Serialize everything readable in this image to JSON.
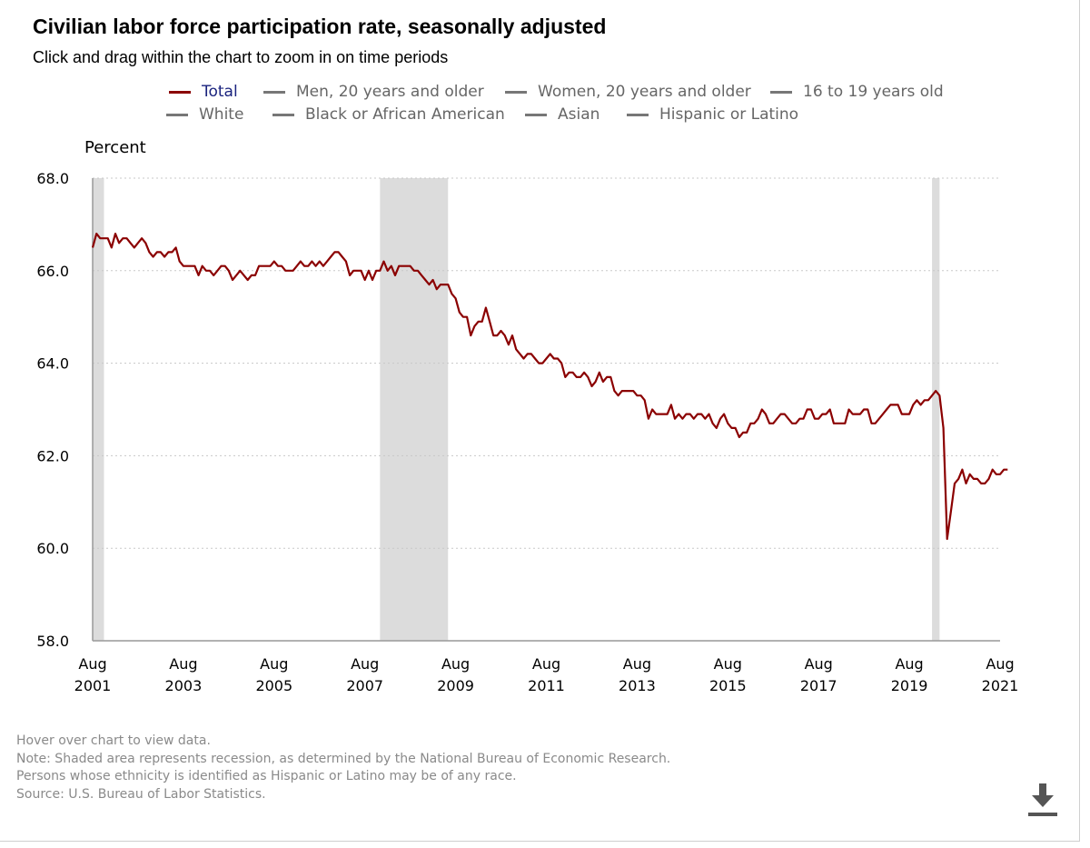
{
  "title": "Civilian labor force participation rate, seasonally adjusted",
  "subtitle": "Click and drag within the chart to zoom in on time periods",
  "legend": [
    {
      "label": "Total",
      "color": "#8b0000",
      "active": true
    },
    {
      "label": "Men, 20 years and older",
      "color": "#777777",
      "active": false
    },
    {
      "label": "Women, 20 years and older",
      "color": "#777777",
      "active": false
    },
    {
      "label": "16 to 19 years old",
      "color": "#777777",
      "active": false
    },
    {
      "label": "White",
      "color": "#777777",
      "active": false
    },
    {
      "label": "Black or African American",
      "color": "#777777",
      "active": false
    },
    {
      "label": "Asian",
      "color": "#777777",
      "active": false
    },
    {
      "label": "Hispanic or Latino",
      "color": "#777777",
      "active": false
    }
  ],
  "y_unit_label": "Percent",
  "footer": {
    "hover": "Hover over chart to view data.",
    "note": "Note: Shaded area represents recession, as determined by the National Bureau of Economic Research.",
    "ethnicity": "Persons whose ethnicity is identified as Hispanic or Latino may be of any race.",
    "source": "Source: U.S. Bureau of Labor Statistics."
  },
  "download_icon": "download-icon",
  "colors": {
    "series": "#8b0000",
    "recession": "#dcdcdc",
    "grid": "#c8c8c8",
    "axis": "#999999"
  },
  "chart_data": {
    "type": "line",
    "title": "Civilian labor force participation rate, seasonally adjusted",
    "ylabel": "Percent",
    "xlabel": "",
    "ylim": [
      58.0,
      68.0
    ],
    "yticks": [
      58.0,
      60.0,
      62.0,
      64.0,
      66.0,
      68.0
    ],
    "ytick_labels": [
      "58.0",
      "60.0",
      "62.0",
      "64.0",
      "66.0",
      "68.0"
    ],
    "xlim_months": [
      0,
      240
    ],
    "xticks": [
      {
        "m": 0,
        "month": "Aug",
        "year": "2001"
      },
      {
        "m": 24,
        "month": "Aug",
        "year": "2003"
      },
      {
        "m": 48,
        "month": "Aug",
        "year": "2005"
      },
      {
        "m": 72,
        "month": "Aug",
        "year": "2007"
      },
      {
        "m": 96,
        "month": "Aug",
        "year": "2009"
      },
      {
        "m": 120,
        "month": "Aug",
        "year": "2011"
      },
      {
        "m": 144,
        "month": "Aug",
        "year": "2013"
      },
      {
        "m": 168,
        "month": "Aug",
        "year": "2015"
      },
      {
        "m": 192,
        "month": "Aug",
        "year": "2017"
      },
      {
        "m": 216,
        "month": "Aug",
        "year": "2019"
      },
      {
        "m": 240,
        "month": "Aug",
        "year": "2021"
      }
    ],
    "recessions": [
      {
        "label": "2001 recession",
        "start_m": 0,
        "end_m": 3
      },
      {
        "label": "2007-2009 recession",
        "start_m": 76,
        "end_m": 94
      },
      {
        "label": "2020 recession",
        "start_m": 222,
        "end_m": 224
      }
    ],
    "grid": true,
    "series": [
      {
        "name": "Total",
        "start": "Aug 2001",
        "frequency": "monthly",
        "values": [
          66.5,
          66.8,
          66.7,
          66.7,
          66.7,
          66.5,
          66.8,
          66.6,
          66.7,
          66.7,
          66.6,
          66.5,
          66.6,
          66.7,
          66.6,
          66.4,
          66.3,
          66.4,
          66.4,
          66.3,
          66.4,
          66.4,
          66.5,
          66.2,
          66.1,
          66.1,
          66.1,
          66.1,
          65.9,
          66.1,
          66.0,
          66.0,
          65.9,
          66.0,
          66.1,
          66.1,
          66.0,
          65.8,
          65.9,
          66.0,
          65.9,
          65.8,
          65.9,
          65.9,
          66.1,
          66.1,
          66.1,
          66.1,
          66.2,
          66.1,
          66.1,
          66.0,
          66.0,
          66.0,
          66.1,
          66.2,
          66.1,
          66.1,
          66.2,
          66.1,
          66.2,
          66.1,
          66.2,
          66.3,
          66.4,
          66.4,
          66.3,
          66.2,
          65.9,
          66.0,
          66.0,
          66.0,
          65.8,
          66.0,
          65.8,
          66.0,
          66.0,
          66.2,
          66.0,
          66.1,
          65.9,
          66.1,
          66.1,
          66.1,
          66.1,
          66.0,
          66.0,
          65.9,
          65.8,
          65.7,
          65.8,
          65.6,
          65.7,
          65.7,
          65.7,
          65.5,
          65.4,
          65.1,
          65.0,
          65.0,
          64.6,
          64.8,
          64.9,
          64.9,
          65.2,
          64.9,
          64.6,
          64.6,
          64.7,
          64.6,
          64.4,
          64.6,
          64.3,
          64.2,
          64.1,
          64.2,
          64.2,
          64.1,
          64.0,
          64.0,
          64.1,
          64.2,
          64.1,
          64.1,
          64.0,
          63.7,
          63.8,
          63.8,
          63.7,
          63.7,
          63.8,
          63.7,
          63.5,
          63.6,
          63.8,
          63.6,
          63.7,
          63.7,
          63.4,
          63.3,
          63.4,
          63.4,
          63.4,
          63.4,
          63.3,
          63.3,
          63.2,
          62.8,
          63.0,
          62.9,
          62.9,
          62.9,
          62.9,
          63.1,
          62.8,
          62.9,
          62.8,
          62.9,
          62.9,
          62.8,
          62.9,
          62.9,
          62.8,
          62.9,
          62.7,
          62.6,
          62.8,
          62.9,
          62.7,
          62.6,
          62.6,
          62.4,
          62.5,
          62.5,
          62.7,
          62.7,
          62.8,
          63.0,
          62.9,
          62.7,
          62.7,
          62.8,
          62.9,
          62.9,
          62.8,
          62.7,
          62.7,
          62.8,
          62.8,
          63.0,
          63.0,
          62.8,
          62.8,
          62.9,
          62.9,
          63.0,
          62.7,
          62.7,
          62.7,
          62.7,
          63.0,
          62.9,
          62.9,
          62.9,
          63.0,
          63.0,
          62.7,
          62.7,
          62.8,
          62.9,
          63.0,
          63.1,
          63.1,
          63.1,
          62.9,
          62.9,
          62.9,
          63.1,
          63.2,
          63.1,
          63.2,
          63.2,
          63.3,
          63.4,
          63.3,
          62.6,
          60.2,
          60.8,
          61.4,
          61.5,
          61.7,
          61.4,
          61.6,
          61.5,
          61.5,
          61.4,
          61.4,
          61.5,
          61.7,
          61.6,
          61.6,
          61.7,
          61.7
        ]
      }
    ]
  }
}
